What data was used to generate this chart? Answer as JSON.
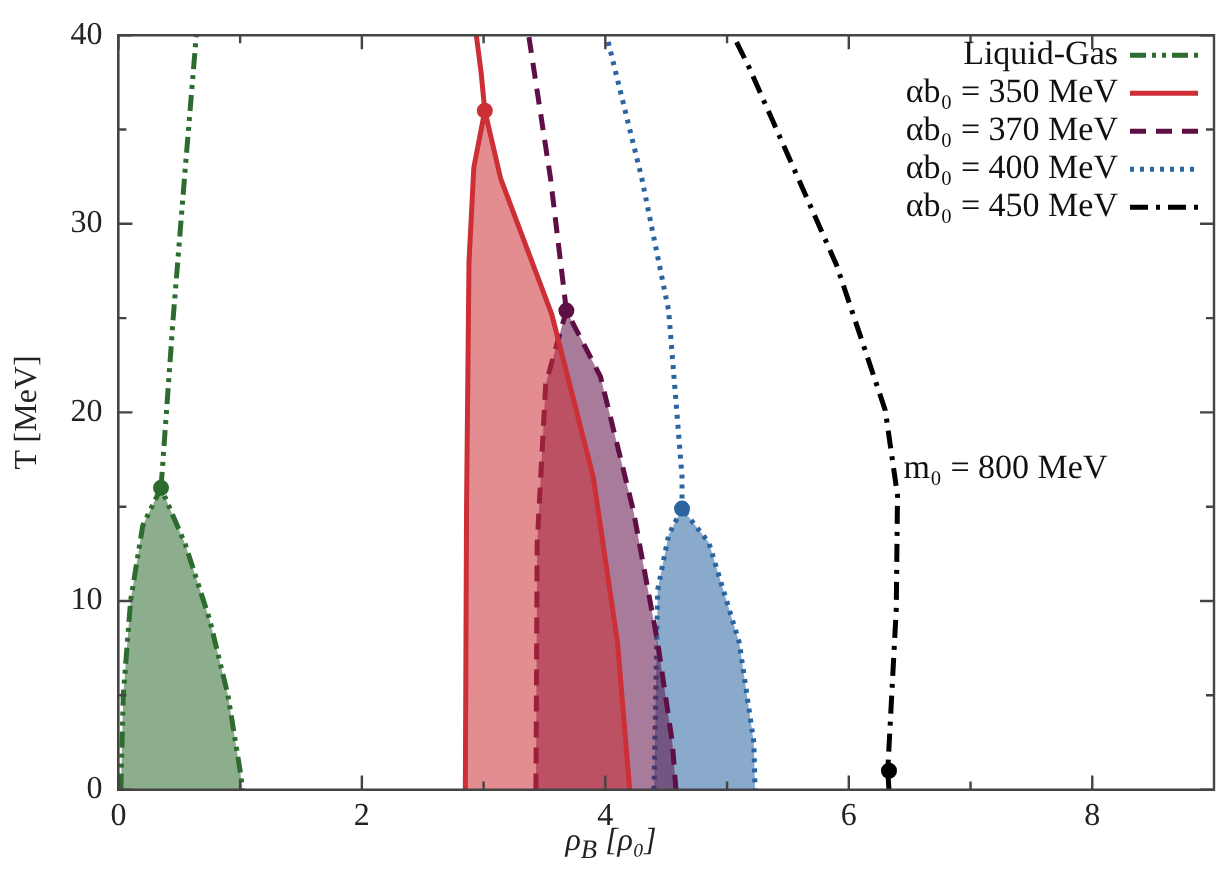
{
  "chart_data": {
    "type": "line",
    "xlabel": "ρ$_{B}$ [ρ₀]",
    "ylabel": "T [MeV]",
    "xlim": [
      0,
      9
    ],
    "ylim": [
      0,
      40
    ],
    "xticks": [
      0,
      {
        "value": 1,
        "label": null
      },
      2,
      {
        "value": 3,
        "label": null
      },
      4,
      {
        "value": 5,
        "label": null
      },
      6,
      {
        "value": 7,
        "label": null
      },
      8
    ],
    "yticks": [
      0,
      {
        "value": 5,
        "label": null
      },
      10,
      {
        "value": 15,
        "label": null
      },
      20,
      {
        "value": 25,
        "label": null
      },
      30,
      {
        "value": 35,
        "label": null
      },
      40
    ],
    "grid": false,
    "legend": "top right",
    "annotations": [
      {
        "text": "m₀ = 800 MeV",
        "x": 6.45,
        "y": 17
      }
    ],
    "series": [
      {
        "type": "area",
        "color": "#2e6b2e",
        "line_style": "dashdotdot",
        "x": [
          0.02,
          0.04,
          0.1,
          0.2,
          0.35,
          0.55,
          0.75,
          0.9,
          1.0,
          1.02
        ],
        "values": [
          0,
          5,
          10,
          14,
          16,
          13,
          9,
          5,
          1,
          0
        ]
      },
      {
        "type": "area",
        "color": "#cc2f35",
        "line_style": "solid",
        "x": [
          2.85,
          2.86,
          2.88,
          2.92,
          3.01,
          3.14,
          3.56,
          3.9,
          4.1,
          4.2
        ],
        "values": [
          0,
          15,
          28,
          33,
          36,
          32.4,
          25.2,
          16.6,
          7.8,
          0
        ]
      },
      {
        "type": "area",
        "color": "#5e0f45",
        "line_style": "dashed",
        "x": [
          3.43,
          3.44,
          3.51,
          3.68,
          3.96,
          4.23,
          4.43,
          4.55,
          4.58
        ],
        "values": [
          0,
          13,
          21.5,
          25.4,
          21.9,
          14.8,
          7.8,
          2.5,
          0
        ]
      },
      {
        "type": "area",
        "color": "#2a65a0",
        "line_style": "dotted",
        "x": [
          4.4,
          4.43,
          4.52,
          4.63,
          4.85,
          5.1,
          5.22,
          5.23
        ],
        "values": [
          0,
          10.6,
          13.5,
          14.9,
          13.1,
          7.8,
          2.5,
          0
        ]
      },
      {
        "name": "Liquid-Gas",
        "color": "#2e6b2e",
        "line_style": "dashdotdot",
        "x": [
          0.35,
          0.45,
          0.55,
          0.64
        ],
        "values": [
          16,
          25,
          33,
          40
        ]
      },
      {
        "name": "αb₀ = 350 MeV",
        "color": "#cc2f35",
        "line_style": "solid",
        "x": [
          3.01,
          2.98,
          2.94
        ],
        "values": [
          36,
          38,
          40
        ]
      },
      {
        "name": "αb₀ = 370 MeV",
        "color": "#5e0f45",
        "line_style": "dashed",
        "x": [
          3.68,
          3.55,
          3.37
        ],
        "values": [
          25.4,
          32.4,
          40
        ]
      },
      {
        "name": "αb₀ = 400 MeV",
        "color": "#2a65a0",
        "line_style": "dotted",
        "x": [
          4.63,
          4.63,
          4.52,
          4.3,
          4.01
        ],
        "values": [
          14.9,
          16.6,
          25.4,
          32.4,
          40
        ]
      },
      {
        "name": "αb₀ = 450 MeV",
        "color": "#000000",
        "line_style": "dashdot",
        "x": [
          6.33,
          6.32,
          6.39,
          6.4,
          6.3,
          5.9,
          5.18,
          5.05
        ],
        "values": [
          0,
          1,
          9.6,
          15.6,
          20.1,
          27.8,
          38.3,
          40
        ]
      },
      {
        "type": "scatter",
        "marker": "circle",
        "colors": [
          "#2e6b2e",
          "#cc2f35",
          "#5e0f45",
          "#2a65a0",
          "#000000"
        ],
        "x": [
          0.35,
          3.01,
          3.68,
          4.63,
          6.33
        ],
        "values": [
          16,
          36,
          25.4,
          14.9,
          1
        ]
      }
    ]
  }
}
